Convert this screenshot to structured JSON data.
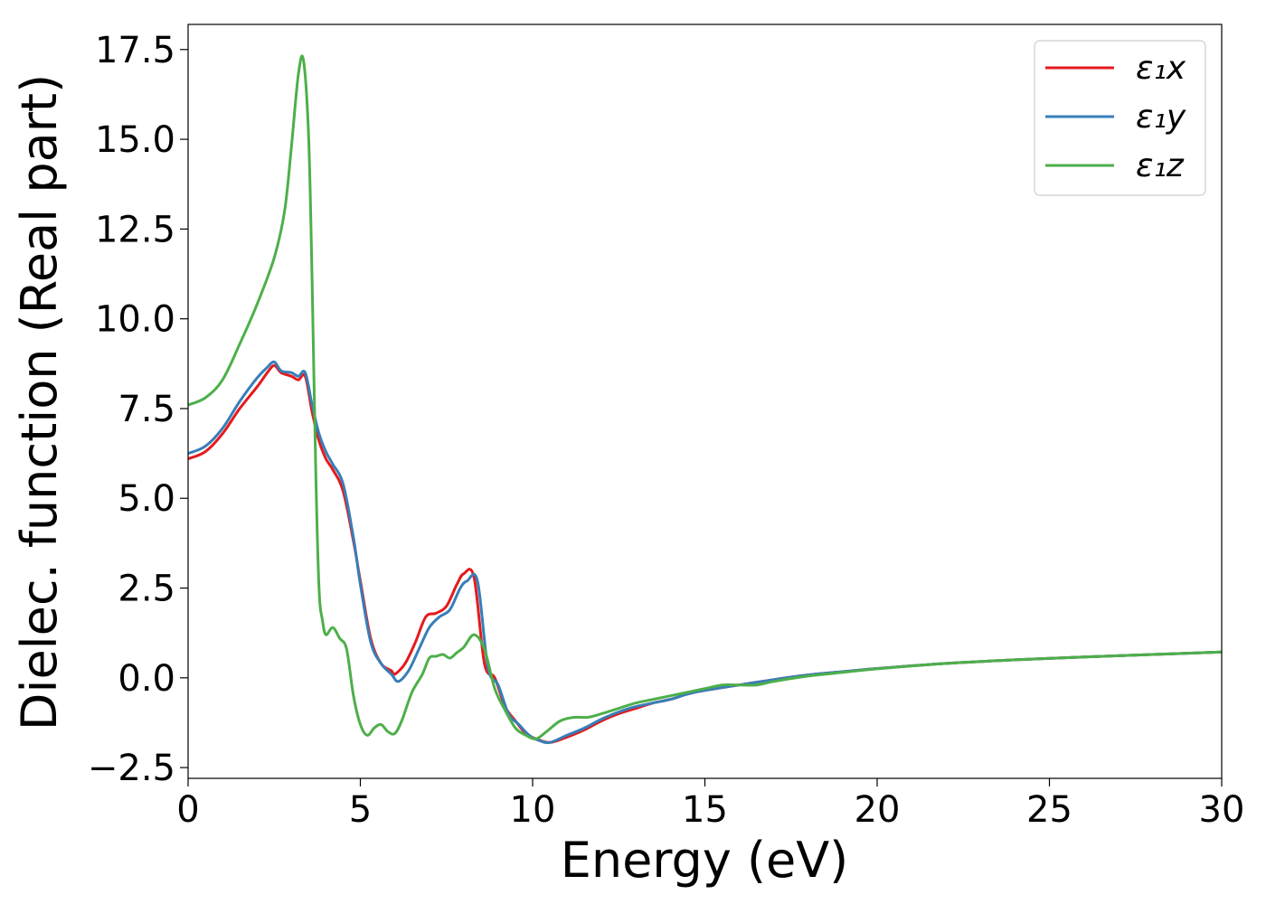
{
  "chart_data": {
    "type": "line",
    "title": "",
    "xlabel": "Energy (eV)",
    "ylabel": "Dielec. function (Real part)",
    "xlim": [
      0,
      30
    ],
    "ylim": [
      -2.8,
      18.2
    ],
    "xticks": [
      0,
      5,
      10,
      15,
      20,
      25,
      30
    ],
    "xtick_labels": [
      "0",
      "5",
      "10",
      "15",
      "20",
      "25",
      "30"
    ],
    "yticks": [
      -2.5,
      0.0,
      2.5,
      5.0,
      7.5,
      10.0,
      12.5,
      15.0,
      17.5
    ],
    "ytick_labels": [
      "−2.5",
      "0.0",
      "2.5",
      "5.0",
      "7.5",
      "10.0",
      "12.5",
      "15.0",
      "17.5"
    ],
    "grid": false,
    "legend_position": "top-right",
    "series": [
      {
        "name": "ε₁x",
        "color": "#e41a1c",
        "x": [
          0,
          0.5,
          1.0,
          1.5,
          2.0,
          2.3,
          2.5,
          2.7,
          3.0,
          3.2,
          3.4,
          3.6,
          3.8,
          4.0,
          4.2,
          4.5,
          4.8,
          5.0,
          5.3,
          5.6,
          5.9,
          6.0,
          6.3,
          6.6,
          6.9,
          7.2,
          7.5,
          7.8,
          8.0,
          8.3,
          8.6,
          8.9,
          9.2,
          9.5,
          9.8,
          10.1,
          10.5,
          11.0,
          11.5,
          12.0,
          12.5,
          13.0,
          13.5,
          14.0,
          14.5,
          15.0,
          16.0,
          17.0,
          18.0,
          19.0,
          20.0,
          22.0,
          24.0,
          26.0,
          28.0,
          30.0
        ],
        "y": [
          6.1,
          6.3,
          6.8,
          7.5,
          8.1,
          8.5,
          8.7,
          8.5,
          8.4,
          8.3,
          8.4,
          7.4,
          6.6,
          6.1,
          5.8,
          5.2,
          3.8,
          2.7,
          1.1,
          0.4,
          0.2,
          0.1,
          0.4,
          1.0,
          1.7,
          1.8,
          2.0,
          2.6,
          2.9,
          2.8,
          0.4,
          0.0,
          -0.8,
          -1.2,
          -1.55,
          -1.7,
          -1.8,
          -1.65,
          -1.45,
          -1.2,
          -1.0,
          -0.85,
          -0.7,
          -0.6,
          -0.45,
          -0.35,
          -0.2,
          -0.05,
          0.08,
          0.17,
          0.26,
          0.4,
          0.5,
          0.58,
          0.65,
          0.72
        ]
      },
      {
        "name": "ε₁y",
        "color": "#377eb8",
        "x": [
          0,
          0.5,
          1.0,
          1.5,
          2.0,
          2.3,
          2.5,
          2.7,
          3.0,
          3.2,
          3.4,
          3.6,
          3.8,
          4.0,
          4.2,
          4.5,
          4.8,
          5.0,
          5.3,
          5.6,
          5.9,
          6.1,
          6.4,
          6.7,
          7.0,
          7.3,
          7.6,
          7.9,
          8.1,
          8.4,
          8.7,
          9.0,
          9.3,
          9.6,
          9.9,
          10.2,
          10.5,
          11.0,
          11.5,
          12.0,
          12.5,
          13.0,
          13.5,
          14.0,
          14.5,
          15.0,
          16.0,
          17.0,
          18.0,
          19.0,
          20.0,
          22.0,
          24.0,
          26.0,
          28.0,
          30.0
        ],
        "y": [
          6.25,
          6.45,
          6.95,
          7.7,
          8.35,
          8.65,
          8.8,
          8.55,
          8.5,
          8.4,
          8.5,
          7.6,
          6.8,
          6.3,
          5.95,
          5.4,
          3.9,
          2.6,
          1.0,
          0.4,
          0.1,
          -0.1,
          0.2,
          0.8,
          1.4,
          1.7,
          1.9,
          2.5,
          2.7,
          2.7,
          0.3,
          -0.2,
          -1.0,
          -1.3,
          -1.6,
          -1.75,
          -1.8,
          -1.6,
          -1.4,
          -1.15,
          -0.95,
          -0.8,
          -0.7,
          -0.6,
          -0.45,
          -0.35,
          -0.2,
          -0.05,
          0.08,
          0.17,
          0.26,
          0.4,
          0.5,
          0.58,
          0.65,
          0.72
        ]
      },
      {
        "name": "ε₁z",
        "color": "#4daf4a",
        "x": [
          0,
          0.5,
          1.0,
          1.5,
          2.0,
          2.5,
          2.8,
          3.0,
          3.2,
          3.35,
          3.5,
          3.6,
          3.7,
          3.8,
          3.9,
          4.0,
          4.2,
          4.4,
          4.6,
          4.8,
          5.0,
          5.2,
          5.4,
          5.6,
          5.8,
          6.0,
          6.2,
          6.5,
          6.8,
          7.0,
          7.2,
          7.4,
          7.6,
          7.8,
          8.0,
          8.3,
          8.6,
          8.9,
          9.2,
          9.5,
          9.8,
          10.1,
          10.4,
          10.8,
          11.2,
          11.6,
          12.0,
          12.5,
          13.0,
          13.5,
          14.0,
          14.5,
          15.0,
          15.5,
          16.0,
          16.5,
          17.0,
          18.0,
          19.0,
          20.0,
          22.0,
          24.0,
          26.0,
          28.0,
          30.0
        ],
        "y": [
          7.6,
          7.8,
          8.3,
          9.3,
          10.4,
          11.7,
          13.0,
          14.8,
          16.8,
          17.2,
          15.0,
          11.0,
          6.0,
          2.5,
          1.6,
          1.2,
          1.4,
          1.1,
          0.8,
          -0.5,
          -1.3,
          -1.6,
          -1.4,
          -1.3,
          -1.5,
          -1.55,
          -1.2,
          -0.4,
          0.1,
          0.55,
          0.6,
          0.65,
          0.55,
          0.7,
          0.85,
          1.2,
          0.8,
          -0.3,
          -0.9,
          -1.4,
          -1.6,
          -1.7,
          -1.5,
          -1.2,
          -1.1,
          -1.1,
          -1.0,
          -0.85,
          -0.7,
          -0.6,
          -0.5,
          -0.4,
          -0.3,
          -0.2,
          -0.2,
          -0.2,
          -0.1,
          0.05,
          0.15,
          0.25,
          0.4,
          0.5,
          0.58,
          0.65,
          0.72
        ]
      }
    ]
  }
}
